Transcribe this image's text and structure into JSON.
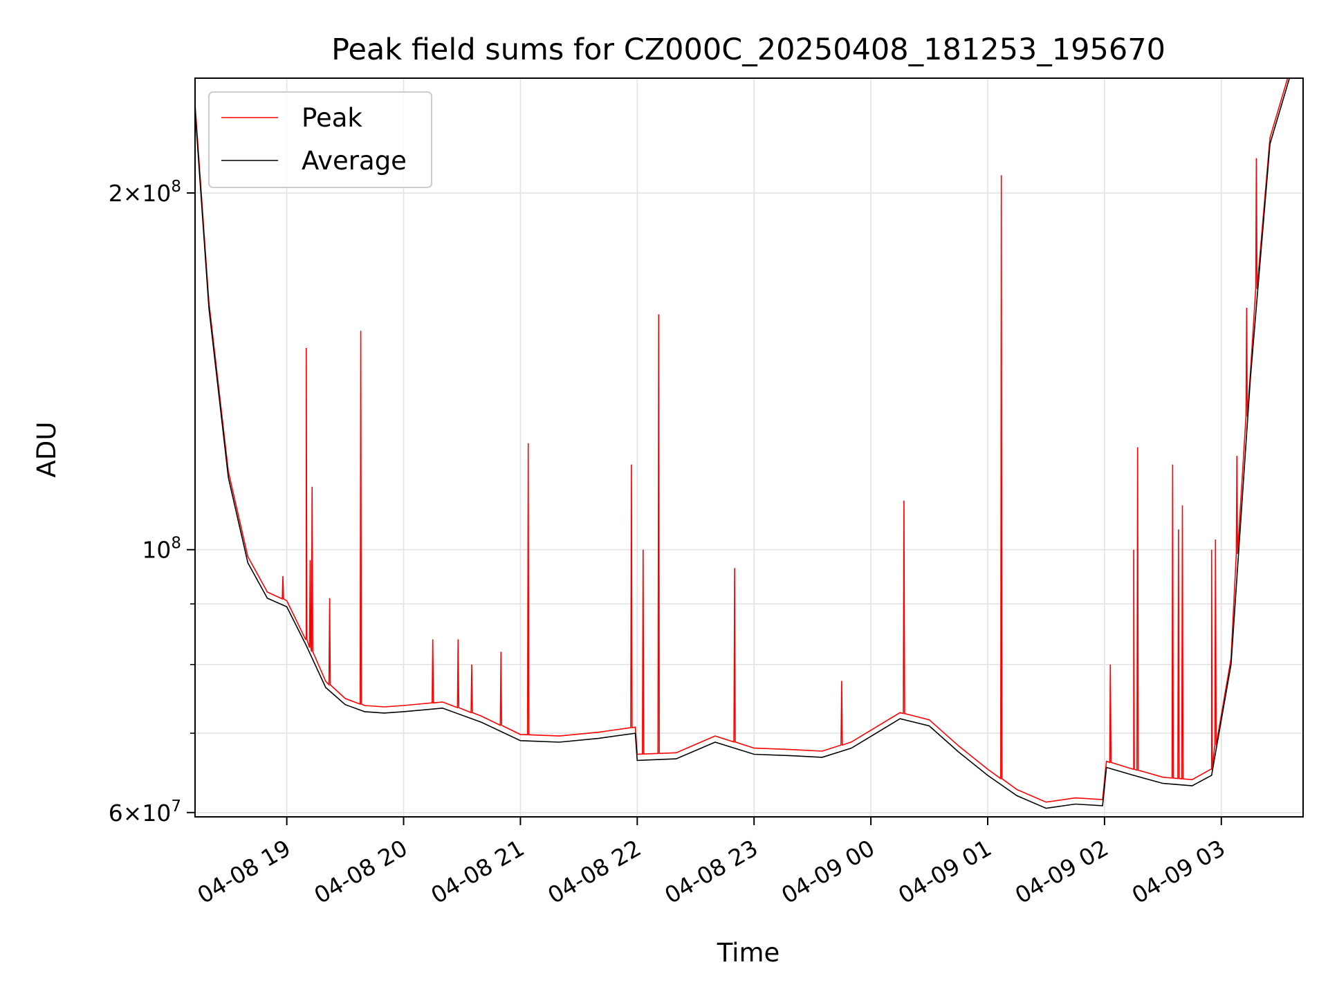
{
  "chart_data": {
    "type": "line",
    "title": "Peak field sums for CZ000C_20250408_181253_195670",
    "xlabel": "Time",
    "ylabel": "ADU",
    "yscale": "log",
    "xlim": [
      "2025-04-08 18:12:53",
      "2025-04-09 03:42:00"
    ],
    "ylim": [
      59500000,
      250000000
    ],
    "grid": true,
    "legend_position": "top-left",
    "x_ticks": [
      {
        "value": "2025-04-08 19:00",
        "label": "04-08 19"
      },
      {
        "value": "2025-04-08 20:00",
        "label": "04-08 20"
      },
      {
        "value": "2025-04-08 21:00",
        "label": "04-08 21"
      },
      {
        "value": "2025-04-08 22:00",
        "label": "04-08 22"
      },
      {
        "value": "2025-04-08 23:00",
        "label": "04-08 23"
      },
      {
        "value": "2025-04-09 00:00",
        "label": "04-09 00"
      },
      {
        "value": "2025-04-09 01:00",
        "label": "04-09 01"
      },
      {
        "value": "2025-04-09 02:00",
        "label": "04-09 02"
      },
      {
        "value": "2025-04-09 03:00",
        "label": "04-09 03"
      }
    ],
    "y_ticks_major": [
      {
        "value": 60000000,
        "mantissa": "6",
        "exp": "7"
      },
      {
        "value": 100000000,
        "mantissa": "",
        "exp": "8"
      },
      {
        "value": 200000000,
        "mantissa": "2",
        "exp": "8"
      }
    ],
    "y_ticks_minor": [
      70000000,
      80000000,
      90000000
    ],
    "series": [
      {
        "name": "Average",
        "color": "#000000",
        "x": [
          "2025-04-08 18:12:53",
          "2025-04-08 18:20",
          "2025-04-08 18:30",
          "2025-04-08 18:40",
          "2025-04-08 18:50",
          "2025-04-08 19:00",
          "2025-04-08 19:10",
          "2025-04-08 19:20",
          "2025-04-08 19:30",
          "2025-04-08 19:40",
          "2025-04-08 19:50",
          "2025-04-08 20:00",
          "2025-04-08 20:20",
          "2025-04-08 20:40",
          "2025-04-08 21:00",
          "2025-04-08 21:20",
          "2025-04-08 21:40",
          "2025-04-08 21:59",
          "2025-04-08 22:00",
          "2025-04-08 22:20",
          "2025-04-08 22:40",
          "2025-04-08 23:00",
          "2025-04-08 23:20",
          "2025-04-08 23:35",
          "2025-04-08 23:50",
          "2025-04-09 00:15",
          "2025-04-09 00:30",
          "2025-04-09 00:45",
          "2025-04-09 01:00",
          "2025-04-09 01:15",
          "2025-04-09 01:30",
          "2025-04-09 01:45",
          "2025-04-09 01:59",
          "2025-04-09 02:01",
          "2025-04-09 02:15",
          "2025-04-09 02:30",
          "2025-04-09 02:45",
          "2025-04-09 02:55",
          "2025-04-09 03:05",
          "2025-04-09 03:15",
          "2025-04-09 03:25",
          "2025-04-09 03:35",
          "2025-04-09 03:42"
        ],
        "y": [
          235000000,
          160000000,
          115000000,
          97500000,
          91000000,
          89500000,
          83000000,
          76500000,
          74000000,
          73000000,
          72800000,
          73000000,
          73500000,
          71500000,
          69000000,
          68800000,
          69300000,
          70000000,
          66400000,
          66600000,
          68800000,
          67200000,
          67000000,
          66800000,
          68000000,
          72000000,
          71000000,
          67500000,
          64500000,
          62000000,
          60500000,
          61000000,
          60800000,
          65500000,
          64500000,
          63500000,
          63200000,
          64500000,
          80000000,
          140000000,
          220000000,
          250000000,
          250000000
        ]
      },
      {
        "name": "Peak",
        "color": "#ff0000",
        "spikes": [
          {
            "x": "2025-04-08 18:58",
            "y": 95000000
          },
          {
            "x": "2025-04-08 19:10",
            "y": 148000000
          },
          {
            "x": "2025-04-08 19:12",
            "y": 98000000
          },
          {
            "x": "2025-04-08 19:13",
            "y": 113000000
          },
          {
            "x": "2025-04-08 19:22",
            "y": 91000000
          },
          {
            "x": "2025-04-08 19:38",
            "y": 153000000
          },
          {
            "x": "2025-04-08 20:15",
            "y": 84000000
          },
          {
            "x": "2025-04-08 20:28",
            "y": 84000000
          },
          {
            "x": "2025-04-08 20:35",
            "y": 80000000
          },
          {
            "x": "2025-04-08 20:50",
            "y": 82000000
          },
          {
            "x": "2025-04-08 21:04",
            "y": 123000000
          },
          {
            "x": "2025-04-08 21:57",
            "y": 118000000
          },
          {
            "x": "2025-04-08 22:03",
            "y": 100000000
          },
          {
            "x": "2025-04-08 22:11",
            "y": 158000000
          },
          {
            "x": "2025-04-08 22:50",
            "y": 96500000
          },
          {
            "x": "2025-04-08 23:45",
            "y": 77500000
          },
          {
            "x": "2025-04-09 00:17",
            "y": 110000000
          },
          {
            "x": "2025-04-09 01:07",
            "y": 207000000
          },
          {
            "x": "2025-04-09 02:03",
            "y": 80000000
          },
          {
            "x": "2025-04-09 02:15",
            "y": 100000000
          },
          {
            "x": "2025-04-09 02:17",
            "y": 122000000
          },
          {
            "x": "2025-04-09 02:35",
            "y": 118000000
          },
          {
            "x": "2025-04-09 02:38",
            "y": 104000000
          },
          {
            "x": "2025-04-09 02:40",
            "y": 109000000
          },
          {
            "x": "2025-04-09 02:55",
            "y": 100000000
          },
          {
            "x": "2025-04-09 02:57",
            "y": 102000000
          },
          {
            "x": "2025-04-09 03:08",
            "y": 120000000
          },
          {
            "x": "2025-04-09 03:13",
            "y": 160000000
          },
          {
            "x": "2025-04-09 03:18",
            "y": 214000000
          }
        ]
      }
    ]
  }
}
